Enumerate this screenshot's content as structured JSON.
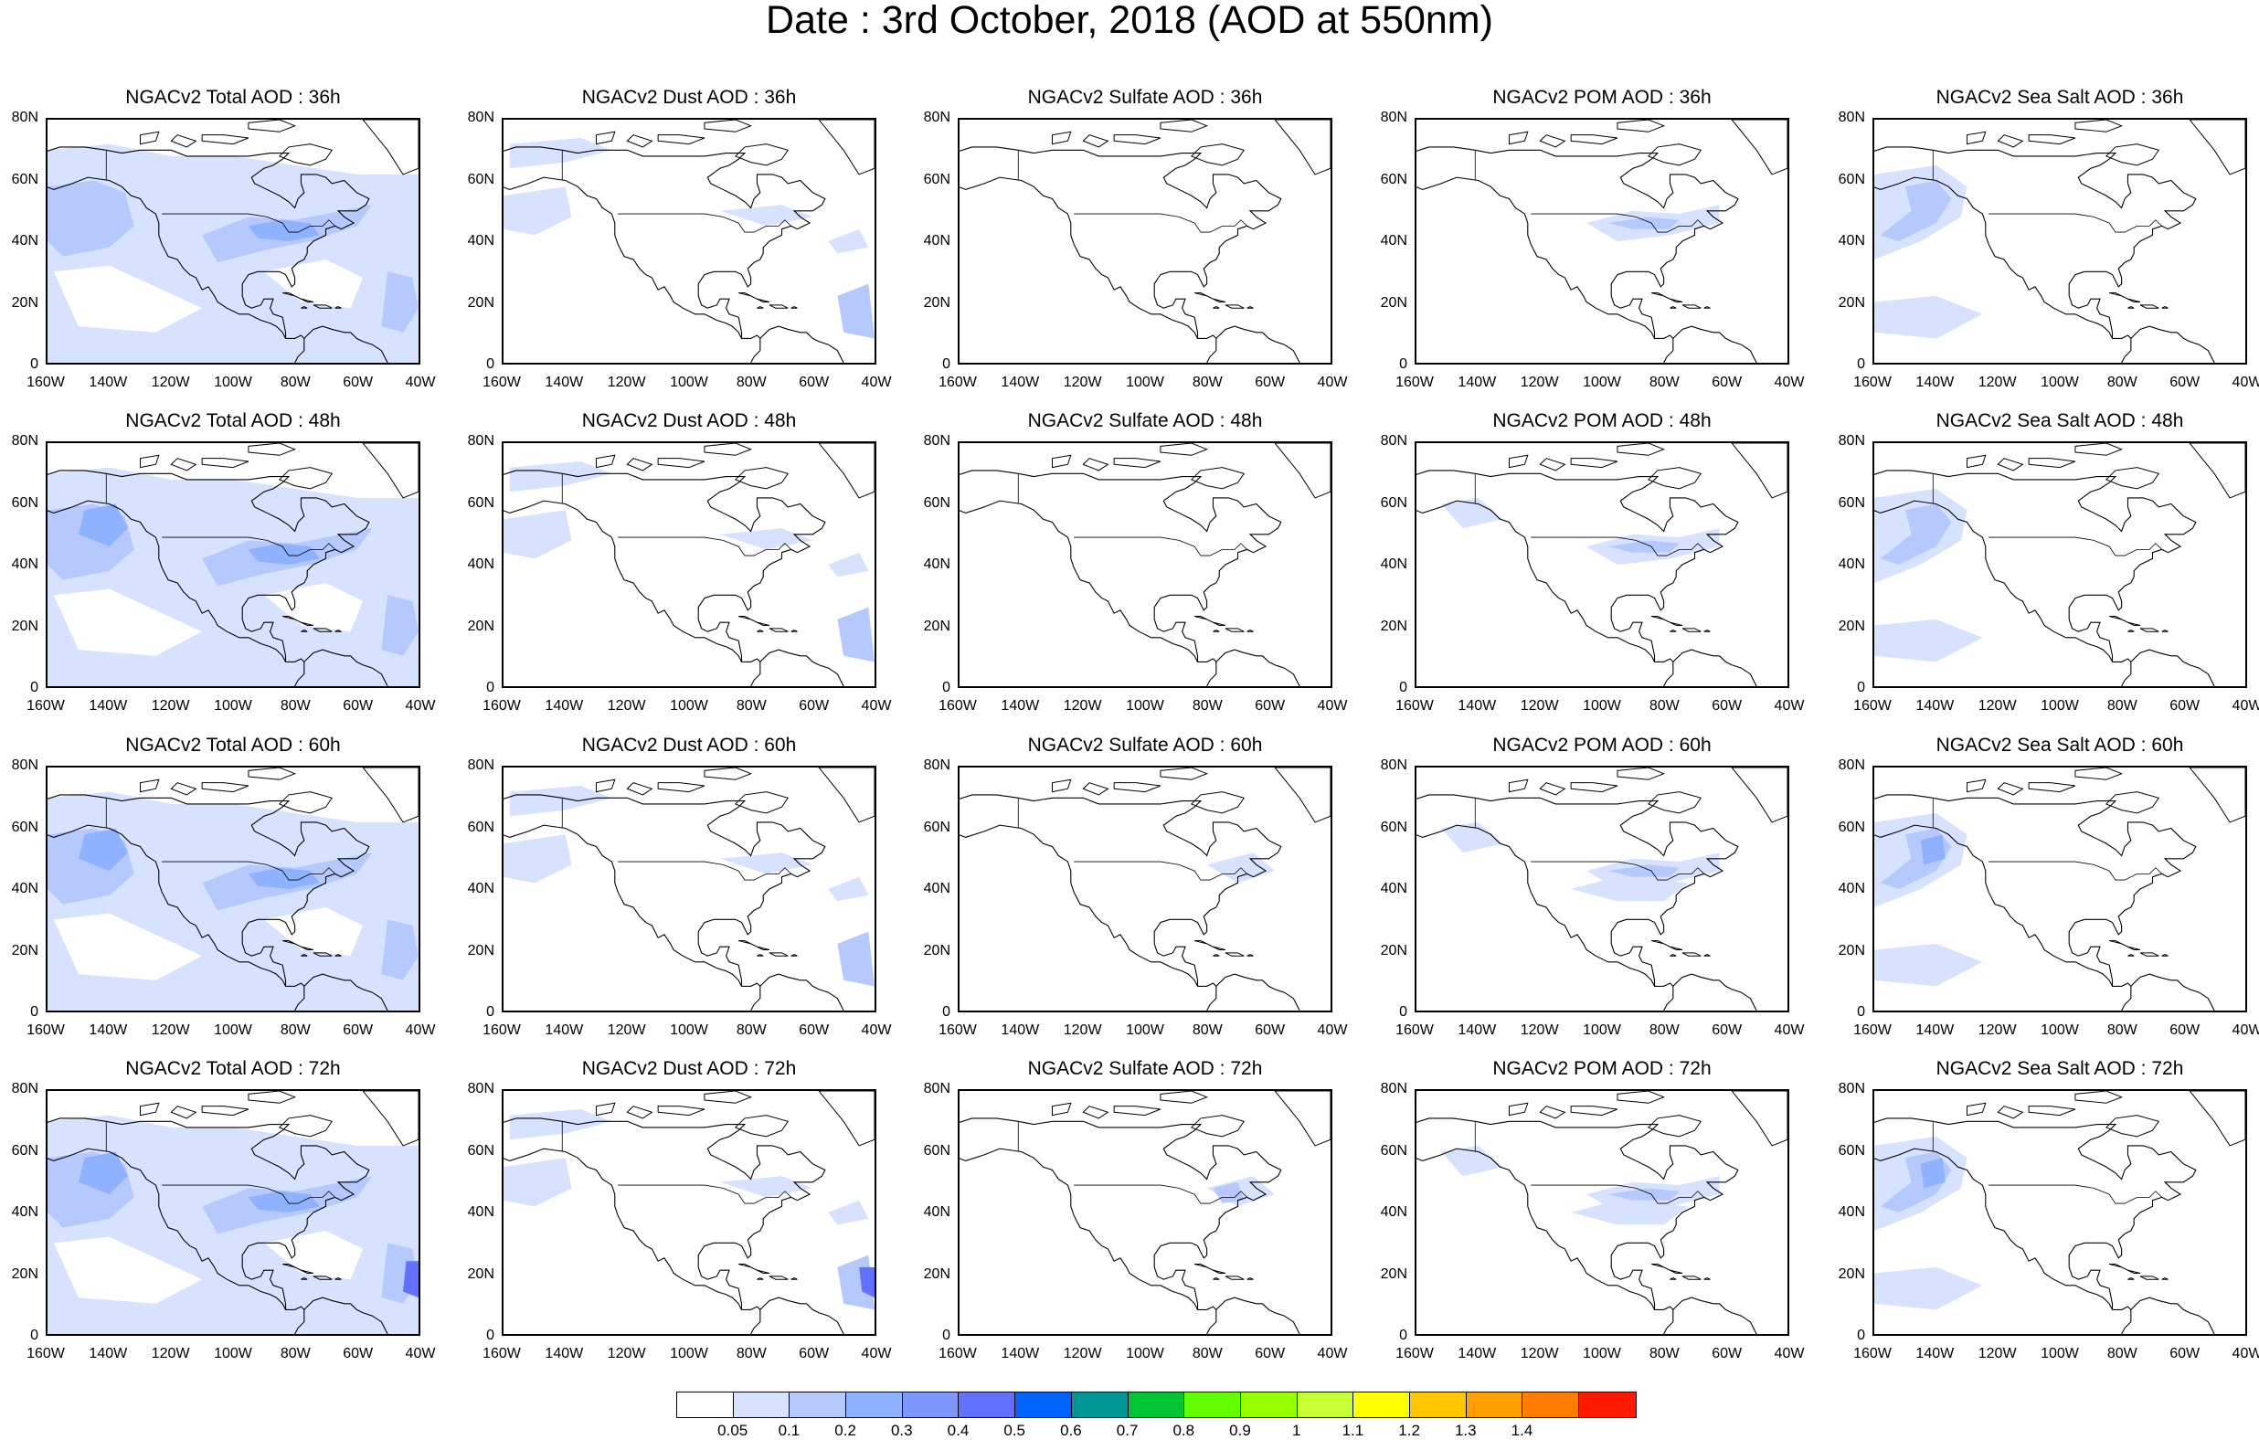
{
  "title": "Date : 3rd October, 2018 (AOD at 550nm)",
  "panels": [
    [
      "NGACv2 Total AOD : 36h",
      "NGACv2 Dust AOD : 36h",
      "NGACv2 Sulfate AOD : 36h",
      "NGACv2 POM AOD : 36h",
      "NGACv2 Sea Salt AOD : 36h"
    ],
    [
      "NGACv2 Total AOD : 48h",
      "NGACv2 Dust AOD : 48h",
      "NGACv2 Sulfate AOD : 48h",
      "NGACv2 POM AOD : 48h",
      "NGACv2 Sea Salt AOD : 48h"
    ],
    [
      "NGACv2 Total AOD : 60h",
      "NGACv2 Dust AOD : 60h",
      "NGACv2 Sulfate AOD : 60h",
      "NGACv2 POM AOD : 60h",
      "NGACv2 Sea Salt AOD : 60h"
    ],
    [
      "NGACv2 Total AOD : 72h",
      "NGACv2 Dust AOD : 72h",
      "NGACv2 Sulfate AOD : 72h",
      "NGACv2 POM AOD : 72h",
      "NGACv2 Sea Salt  AOD : 72h"
    ]
  ],
  "map": {
    "lat_ticks": [
      "80N",
      "60N",
      "40N",
      "20N",
      "0"
    ],
    "lon_ticks": [
      "160W",
      "140W",
      "120W",
      "100W",
      "80W",
      "60W",
      "40W"
    ],
    "lat_range": [
      0,
      80
    ],
    "lon_range": [
      -160,
      -40
    ],
    "land_color": "#ffffff",
    "coastline_color": "#000000"
  },
  "colorbar": {
    "colors": [
      "#ffffff",
      "#d6e2ff",
      "#b5c9ff",
      "#8eb2ff",
      "#7f96ff",
      "#6370ff",
      "#0063ff",
      "#009696",
      "#00c633",
      "#63ff00",
      "#96ff00",
      "#c6ff33",
      "#ffff00",
      "#ffc600",
      "#ffa000",
      "#ff7c00",
      "#ff1900"
    ],
    "labels": [
      "0.05",
      "0.1",
      "0.2",
      "0.3",
      "0.4",
      "0.5",
      "0.6",
      "0.7",
      "0.8",
      "0.9",
      "1",
      "1.1",
      "1.2",
      "1.3",
      "1.4"
    ]
  }
}
